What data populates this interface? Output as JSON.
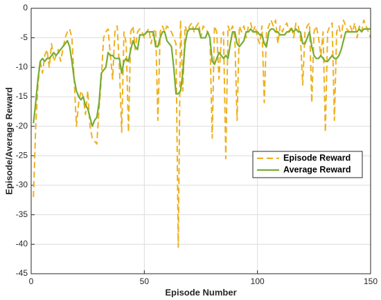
{
  "chart_data": {
    "type": "line",
    "x_label": "Episode Number",
    "y_label": "Episode/Average Reward",
    "x": [
      1,
      2,
      3,
      4,
      5,
      6,
      7,
      8,
      9,
      10,
      11,
      12,
      13,
      14,
      15,
      16,
      17,
      18,
      19,
      20,
      21,
      22,
      23,
      24,
      25,
      26,
      27,
      28,
      29,
      30,
      31,
      32,
      33,
      34,
      35,
      36,
      37,
      38,
      39,
      40,
      41,
      42,
      43,
      44,
      45,
      46,
      47,
      48,
      49,
      50,
      51,
      52,
      53,
      54,
      55,
      56,
      57,
      58,
      59,
      60,
      61,
      62,
      63,
      64,
      65,
      66,
      67,
      68,
      69,
      70,
      71,
      72,
      73,
      74,
      75,
      76,
      77,
      78,
      79,
      80,
      81,
      82,
      83,
      84,
      85,
      86,
      87,
      88,
      89,
      90,
      91,
      92,
      93,
      94,
      95,
      96,
      97,
      98,
      99,
      100,
      101,
      102,
      103,
      104,
      105,
      106,
      107,
      108,
      109,
      110,
      111,
      112,
      113,
      114,
      115,
      116,
      117,
      118,
      119,
      120,
      121,
      122,
      123,
      124,
      125,
      126,
      127,
      128,
      129,
      130,
      131,
      132,
      133,
      134,
      135,
      136,
      137,
      138,
      139,
      140,
      141,
      142,
      143,
      144,
      145,
      146,
      147,
      148,
      149,
      150
    ],
    "series": [
      {
        "name": "Episode Reward",
        "color": "#EDB120",
        "dash": true,
        "values": [
          -32,
          -20,
          -13,
          -9,
          -11,
          -8,
          -7,
          -10,
          -6,
          -9,
          -8,
          -7,
          -9,
          -7,
          -5,
          -4,
          -3.5,
          -5,
          -12,
          -20,
          -16,
          -14,
          -15,
          -18,
          -14,
          -20,
          -22,
          -22.5,
          -23,
          -17,
          -12,
          -5,
          -4,
          -3.5,
          -8,
          -12,
          -4,
          -3,
          -10,
          -21,
          -4,
          -6,
          -21,
          -4,
          -3,
          -7,
          -4,
          -3.5,
          -4,
          -5,
          -4,
          -3.5,
          -6,
          -4,
          -3.5,
          -19,
          -4,
          -3,
          -4,
          -3,
          -3.5,
          -4,
          -5,
          -6,
          -40.5,
          -2,
          -14,
          -3,
          -4,
          -3,
          -2.5,
          -4,
          -3,
          -2.5,
          -5,
          -3,
          -3.5,
          -4,
          -5,
          -22,
          -3,
          -4,
          -12,
          -5,
          -4,
          -25.5,
          -3,
          -4,
          -3,
          -5,
          -19,
          -3,
          -4,
          -3,
          -5,
          -3,
          -2.5,
          -4,
          -3,
          -5,
          -6,
          -3,
          -16,
          -4,
          -3,
          -2,
          -3,
          -2,
          -6,
          -3,
          -4,
          -3,
          -2.5,
          -4,
          -3,
          -5,
          -2.5,
          -3,
          -5,
          -13,
          -4,
          -3,
          -2.5,
          -16,
          -4,
          -3,
          -5,
          -8,
          -4,
          -21,
          -4,
          -3,
          -2.5,
          -19,
          -4,
          -3,
          -5,
          -2,
          -3,
          -4,
          -3,
          -4,
          -2.5,
          -5,
          -3,
          -4,
          -2,
          -3,
          -4,
          -5
        ]
      },
      {
        "name": "Average Reward",
        "color": "#77AC30",
        "dash": false,
        "values": [
          -19.5,
          -16,
          -12,
          -9,
          -8.5,
          -9,
          -8.5,
          -8.5,
          -8,
          -7.5,
          -8,
          -7.5,
          -7,
          -6.5,
          -6,
          -5.5,
          -6.5,
          -9,
          -12,
          -14,
          -15,
          -15.5,
          -15,
          -16.5,
          -17,
          -18.5,
          -20,
          -19,
          -18.5,
          -16,
          -11,
          -10.5,
          -10,
          -7.5,
          -8,
          -8,
          -8.5,
          -8.5,
          -8.5,
          -11,
          -9,
          -8.5,
          -9,
          -7,
          -5.5,
          -6.5,
          -7,
          -4.5,
          -4.5,
          -4.5,
          -4,
          -4,
          -4,
          -4,
          -6.5,
          -6.5,
          -5,
          -4,
          -4,
          -5.5,
          -6,
          -6.5,
          -10,
          -14.5,
          -14.5,
          -14,
          -11,
          -6,
          -4,
          -3.5,
          -3.5,
          -3.5,
          -3.5,
          -3.5,
          -5,
          -5,
          -5,
          -4,
          -5,
          -9,
          -9.5,
          -8.5,
          -7.5,
          -8,
          -8.5,
          -8,
          -8.5,
          -6,
          -4,
          -4,
          -6,
          -6.5,
          -6,
          -5.5,
          -4,
          -4,
          -3.5,
          -4,
          -4,
          -4,
          -4.5,
          -4.5,
          -6,
          -6.5,
          -4,
          -3.5,
          -3.5,
          -4,
          -4,
          -4.5,
          -4.5,
          -4.5,
          -4,
          -4,
          -3.5,
          -4,
          -3.5,
          -4,
          -4,
          -6,
          -6,
          -5,
          -4,
          -6.5,
          -8,
          -8.5,
          -8.5,
          -8,
          -8.5,
          -9,
          -9,
          -8.5,
          -8,
          -8.5,
          -8.5,
          -8,
          -7,
          -5.5,
          -4,
          -4,
          -4,
          -4,
          -4,
          -4,
          -3.5,
          -4,
          -3.5,
          -3.5,
          -3.5,
          -3.5
        ]
      }
    ],
    "xlim": [
      0,
      150
    ],
    "xticks": [
      0,
      50,
      100,
      150
    ],
    "ylim": [
      -45,
      0
    ],
    "yticks": [
      -45,
      -40,
      -35,
      -30,
      -25,
      -20,
      -15,
      -10,
      -5,
      0
    ],
    "grid": true,
    "legend": "east"
  }
}
